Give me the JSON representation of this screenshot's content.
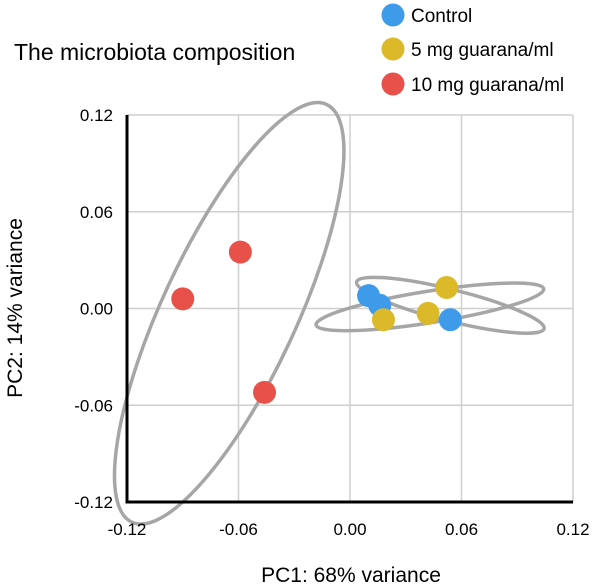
{
  "chart_data": {
    "type": "scatter",
    "title": "The microbiota composition",
    "xlabel": "PC1: 68% variance",
    "ylabel": "PC2: 14% variance",
    "xlim": [
      -0.12,
      0.12
    ],
    "ylim": [
      -0.12,
      0.12
    ],
    "x_ticks": [
      "-0.12",
      "-0.06",
      "0.00",
      "0.06",
      "0.12"
    ],
    "y_ticks": [
      "0.12",
      "0.06",
      "0.00",
      "-0.06",
      "-0.12"
    ],
    "grid": true,
    "legend_position": "top-right",
    "series": [
      {
        "name": "Control",
        "color": "#3d9be9",
        "points": [
          {
            "x": 0.01,
            "y": 0.008
          },
          {
            "x": 0.016,
            "y": 0.002
          },
          {
            "x": 0.054,
            "y": -0.007
          }
        ]
      },
      {
        "name": "5 mg guarana/ml",
        "color": "#dcb928",
        "points": [
          {
            "x": 0.018,
            "y": -0.007
          },
          {
            "x": 0.042,
            "y": -0.003
          },
          {
            "x": 0.052,
            "y": 0.013
          }
        ]
      },
      {
        "name": "10 mg guarana/ml",
        "color": "#e8504a",
        "points": [
          {
            "x": -0.09,
            "y": 0.006
          },
          {
            "x": -0.059,
            "y": 0.035
          },
          {
            "x": -0.046,
            "y": -0.052
          }
        ]
      }
    ],
    "ellipses": [
      {
        "group": "10 mg guarana/ml",
        "center": [
          -0.065,
          -0.003
        ],
        "semi_axes": [
          0.124,
          0.036
        ],
        "angle_deg": -65
      },
      {
        "group": "Control",
        "center": [
          0.043,
          0.001
        ],
        "semi_axes": [
          0.062,
          0.0085
        ],
        "angle_deg": -9
      },
      {
        "group": "5 mg guarana/ml",
        "center": [
          0.054,
          0.002
        ],
        "semi_axes": [
          0.052,
          0.0085
        ],
        "angle_deg": 14
      }
    ],
    "colors": {
      "ellipse": "#a6a6a6",
      "grid": "#cfcfcf",
      "axis": "#000000"
    }
  }
}
